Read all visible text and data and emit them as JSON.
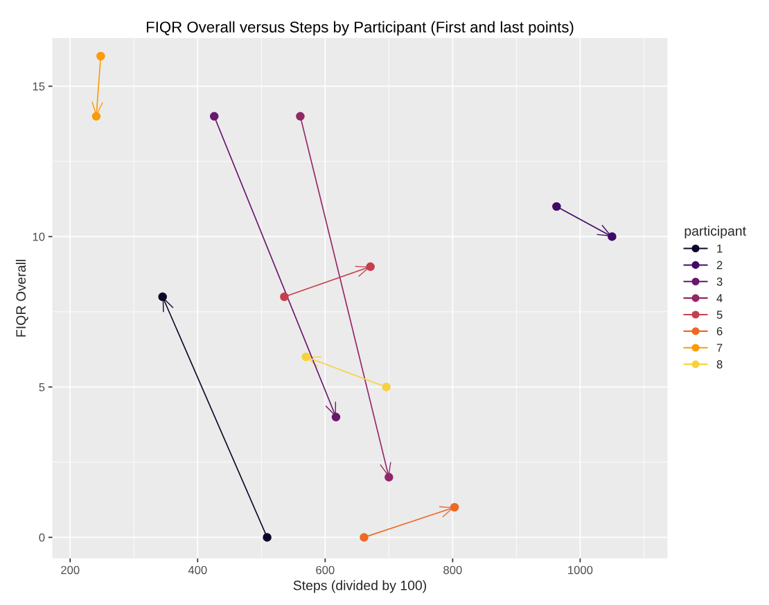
{
  "chart_data": {
    "type": "line",
    "title": "FIQR Overall versus Steps by Participant (First and last points)",
    "xlabel": "Steps (divided by 100)",
    "ylabel": "FIQR Overall",
    "legend_title": "participant",
    "legend": "right",
    "grid": true,
    "marker": "circle",
    "line_style": "solid",
    "xlim": [
      172,
      1137
    ],
    "xticks": [
      200,
      400,
      600,
      800,
      1000
    ],
    "ylim": [
      -0.7,
      16.6
    ],
    "yticks": [
      0,
      5,
      10,
      15
    ],
    "series": [
      {
        "name": "1",
        "color": "#0d0829",
        "x": [
          509,
          345
        ],
        "values": [
          0,
          8
        ]
      },
      {
        "name": "2",
        "color": "#420a68",
        "x": [
          963,
          1050
        ],
        "values": [
          11,
          10
        ]
      },
      {
        "name": "3",
        "color": "#6a176e",
        "x": [
          426,
          617
        ],
        "values": [
          14,
          4
        ]
      },
      {
        "name": "4",
        "color": "#932667",
        "x": [
          561,
          700
        ],
        "values": [
          14,
          2
        ]
      },
      {
        "name": "5",
        "color": "#c73e4c",
        "x": [
          536,
          671
        ],
        "values": [
          8,
          9
        ]
      },
      {
        "name": "6",
        "color": "#ed6925",
        "x": [
          661,
          803
        ],
        "values": [
          0,
          1
        ]
      },
      {
        "name": "7",
        "color": "#fb9b06",
        "x": [
          248,
          241
        ],
        "values": [
          16,
          14
        ]
      },
      {
        "name": "8",
        "color": "#f7d13d",
        "x": [
          696,
          570
        ],
        "values": [
          5,
          6
        ]
      }
    ]
  }
}
